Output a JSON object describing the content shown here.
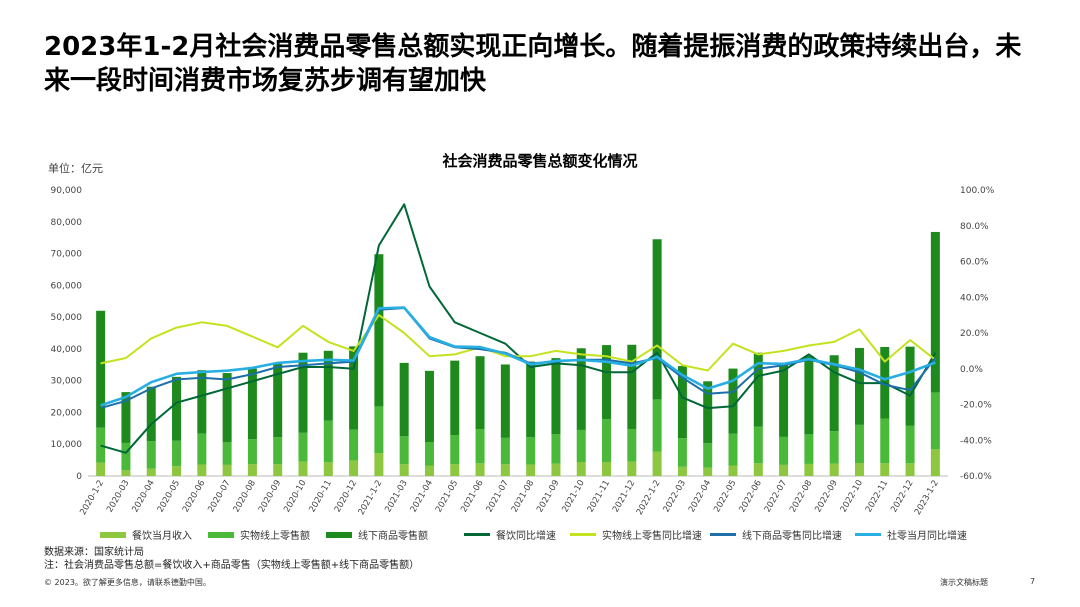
{
  "headline": "2023年1-2月社会消费品零售总额实现正向增长。随着提振消费的政策持续出台，未来一段时间消费市场复苏步调有望加快",
  "unit_label": "单位：亿元",
  "chart_data": {
    "type": "bar",
    "title": "社会消费品零售总额变化情况",
    "categories": [
      "2020-1-2",
      "2020-03",
      "2020-04",
      "2020-05",
      "2020-06",
      "2020-07",
      "2020-08",
      "2020-09",
      "2020-10",
      "2020-11",
      "2020-12",
      "2021-1-2",
      "2021-03",
      "2021-04",
      "2021-05",
      "2021-06",
      "2021-07",
      "2021-08",
      "2021-09",
      "2021-10",
      "2021-11",
      "2021-12",
      "2022-1-2",
      "2022-03",
      "2022-04",
      "2022-05",
      "2022-06",
      "2022-07",
      "2022-08",
      "2022-09",
      "2022-10",
      "2022-11",
      "2022-12",
      "2023-1-2"
    ],
    "left_axis": {
      "min": 0,
      "max": 90000,
      "ticks": [
        "0",
        "10,000",
        "20,000",
        "30,000",
        "40,000",
        "50,000",
        "60,000",
        "70,000",
        "80,000",
        "90,000"
      ]
    },
    "right_axis": {
      "min": -60,
      "max": 100,
      "ticks": [
        "-60.0%",
        "-40.0%",
        "-20.0%",
        "0.0%",
        "20.0%",
        "40.0%",
        "60.0%",
        "80.0%",
        "100.0%"
      ]
    },
    "stacked_series": [
      {
        "name": "餐饮当月收入",
        "color": "#8dc63f",
        "values": [
          4200,
          1800,
          2300,
          3100,
          3600,
          3500,
          3700,
          3700,
          4500,
          4300,
          4900,
          7200,
          3700,
          3300,
          3700,
          4000,
          3700,
          3600,
          3900,
          4400,
          4400,
          4500,
          7700,
          2900,
          2600,
          3300,
          4000,
          3500,
          3800,
          3900,
          4100,
          4000,
          4000,
          8400
        ]
      },
      {
        "name": "实物线上零售额",
        "color": "#4ab839",
        "values": [
          11000,
          8600,
          8700,
          8000,
          9800,
          7100,
          7900,
          8500,
          9100,
          13100,
          9700,
          14700,
          8800,
          7400,
          9200,
          10800,
          8300,
          8600,
          9300,
          10100,
          13500,
          10300,
          16400,
          9000,
          7700,
          10000,
          11500,
          8800,
          9300,
          10200,
          12000,
          14100,
          11800,
          17900
        ]
      },
      {
        "name": "线下商品零售额",
        "color": "#1e8a1e",
        "values": [
          36800,
          16000,
          17100,
          20100,
          19900,
          21800,
          22200,
          23200,
          25200,
          22000,
          26200,
          47900,
          23100,
          22400,
          23400,
          22900,
          23100,
          23800,
          23900,
          25700,
          23300,
          26500,
          50400,
          22700,
          19500,
          20500,
          23300,
          23400,
          24700,
          23900,
          24200,
          22500,
          24900,
          50500
        ]
      }
    ],
    "line_series": [
      {
        "name": "餐饮同比增速",
        "color": "#006837",
        "values": [
          -43,
          -47,
          -31,
          -19,
          -15,
          -11,
          -7,
          -3,
          1,
          1,
          0,
          69,
          92,
          46,
          26,
          20,
          14,
          1,
          3,
          2,
          -2,
          -2,
          9,
          -16,
          -22,
          -21,
          -4,
          -1,
          8,
          -2,
          -8,
          -8,
          -15,
          9
        ]
      },
      {
        "name": "实物线上零售同比增速",
        "color": "#c5e21f",
        "values": [
          3,
          6,
          17,
          23,
          26,
          24,
          18,
          12,
          24,
          15,
          10,
          30,
          20,
          7,
          8,
          12,
          7,
          7,
          10,
          8,
          7,
          4,
          13,
          2,
          -1,
          14,
          8,
          10,
          13,
          15,
          22,
          4,
          16,
          5
        ]
      },
      {
        "name": "线下商品零售同比增速",
        "color": "#1d6fa8",
        "values": [
          -22,
          -18,
          -11,
          -6,
          -5,
          -6,
          -3,
          1,
          2,
          3,
          4,
          33,
          34,
          17,
          12,
          11,
          9,
          3,
          4,
          5,
          5,
          3,
          6,
          -5,
          -14,
          -13,
          0,
          2,
          5,
          2,
          -2,
          -9,
          -12,
          6
        ]
      },
      {
        "name": "社零当月同比增速",
        "color": "#27aee3",
        "values": [
          -20.5,
          -15.8,
          -7.5,
          -2.8,
          -1.8,
          -1.1,
          0.5,
          3.3,
          4.3,
          5.0,
          4.6,
          33.8,
          34.2,
          17.7,
          12.4,
          12.1,
          8.5,
          2.5,
          4.4,
          4.9,
          3.9,
          1.7,
          6.7,
          -3.5,
          -11.1,
          -6.7,
          3.1,
          2.7,
          5.4,
          2.5,
          -0.5,
          -5.9,
          -1.8,
          3.5
        ]
      }
    ]
  },
  "notes": {
    "source": "数据来源：国家统计局",
    "note": "注：社会消费品零售总额=餐饮收入+商品零售（实物线上零售额+线下商品零售额）"
  },
  "footer": {
    "copyright": "© 2023。欲了解更多信息，请联系德勤中国。",
    "presentation_title": "演示文稿标题",
    "page_number": "7"
  }
}
